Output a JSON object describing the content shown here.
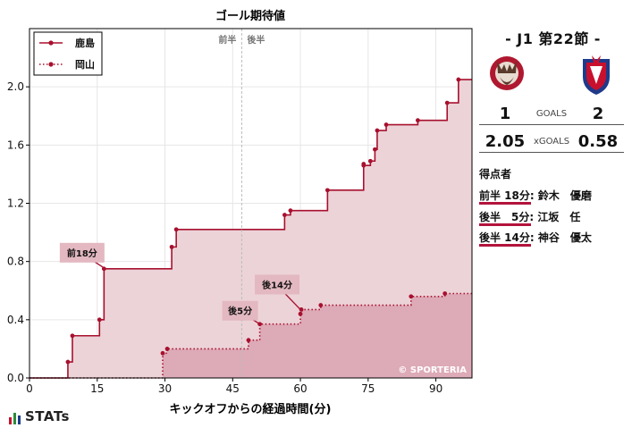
{
  "chart_data": {
    "type": "line",
    "title": "ゴール期待値",
    "xlabel": "キックオフからの経過時間(分)",
    "ylabel": "",
    "xlim": [
      0,
      98
    ],
    "ylim": [
      0,
      2.4
    ],
    "x_ticks": [
      0,
      15,
      30,
      45,
      60,
      75,
      90
    ],
    "y_ticks": [
      0.0,
      0.4,
      0.8,
      1.2,
      1.6,
      2.0
    ],
    "grid": true,
    "legend": "top-left",
    "halftime_minute": 47,
    "halftime_labels": [
      "前半",
      "後半"
    ],
    "watermark": "© SPORTERIA",
    "series": [
      {
        "name": "鹿島",
        "color": "#a8102e",
        "fill": "#ecd3d8",
        "line_style": "solid",
        "step_points": [
          [
            8.5,
            0.11
          ],
          [
            9.5,
            0.29
          ],
          [
            15.5,
            0.4
          ],
          [
            16.5,
            0.75
          ],
          [
            31.5,
            0.9
          ],
          [
            32.5,
            1.02
          ],
          [
            56.5,
            1.12
          ],
          [
            57.8,
            1.15
          ],
          [
            66,
            1.29
          ],
          [
            74,
            1.47
          ],
          [
            74,
            1.46
          ],
          [
            75.5,
            1.49
          ],
          [
            76.5,
            1.57
          ],
          [
            77,
            1.7
          ],
          [
            79,
            1.74
          ],
          [
            86,
            1.77
          ],
          [
            92.5,
            1.89
          ],
          [
            95,
            2.05
          ],
          [
            98,
            2.05
          ]
        ]
      },
      {
        "name": "岡山",
        "color": "#a8102e",
        "fill": "#dca8b5",
        "line_style": "dotted",
        "step_points": [
          [
            29.5,
            0.17
          ],
          [
            30.5,
            0.2
          ],
          [
            48.5,
            0.26
          ],
          [
            51,
            0.37
          ],
          [
            60,
            0.44
          ],
          [
            60.2,
            0.47
          ],
          [
            64.5,
            0.5
          ],
          [
            84.5,
            0.56
          ],
          [
            92,
            0.58
          ],
          [
            98,
            0.58
          ]
        ]
      }
    ],
    "annotations": [
      {
        "label": "前18分",
        "x": 16.8,
        "y": 0.75
      },
      {
        "label": "後5分",
        "x": 51,
        "y": 0.37
      },
      {
        "label": "後14分",
        "x": 60,
        "y": 0.47
      }
    ]
  },
  "match": {
    "title": "- J1 第22節 -",
    "home_goals": "1",
    "away_goals": "2",
    "goals_label": "GOALS",
    "home_xg": "2.05",
    "away_xg": "0.58",
    "xg_label": "xGOALS",
    "scorers_title": "得点者",
    "scorers": [
      {
        "time": "前半 18分:",
        "name": "鈴木　優磨"
      },
      {
        "time": "後半　5分:",
        "name": "江坂　任"
      },
      {
        "time": "後半 14分:",
        "name": "神谷　優太"
      }
    ]
  },
  "brand": {
    "name": "STATs",
    "bar_colors": [
      "#c8102e",
      "#2e8b3a",
      "#1a3c8a"
    ]
  }
}
